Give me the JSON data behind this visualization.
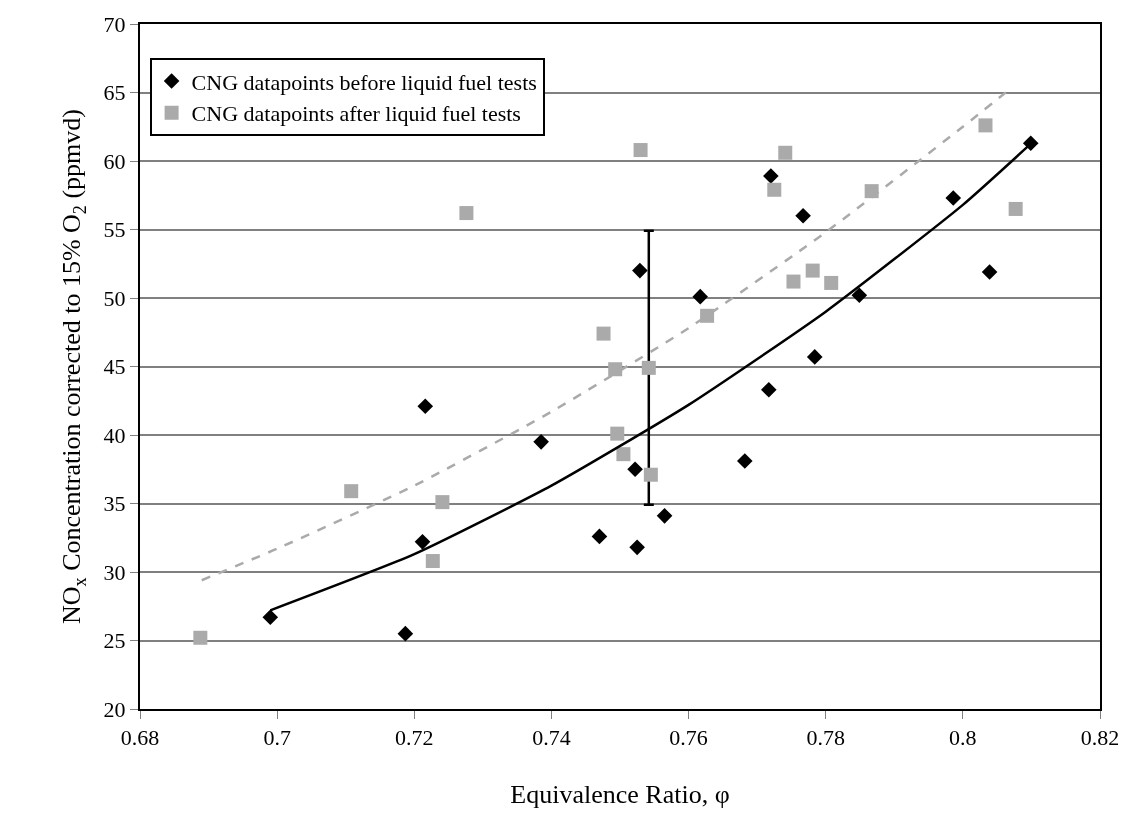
{
  "chart_data": {
    "type": "scatter",
    "xlabel": "Equivalence Ratio, φ",
    "ylabel": "NO$_{x}$ Concentration corrected to 15% O$_{2}$ (ppmvd)",
    "xlim": [
      0.68,
      0.82
    ],
    "xticks": [
      0.68,
      0.7,
      0.72,
      0.74,
      0.76,
      0.78,
      0.8,
      0.82
    ],
    "ylim": [
      20,
      70
    ],
    "yticks": [
      20,
      25,
      30,
      35,
      40,
      45,
      50,
      55,
      60,
      65,
      70
    ],
    "grid": "y",
    "legend": "top left",
    "series": [
      {
        "name": "CNG datapoints before liquid fuel tests",
        "marker": "diamond",
        "color": "#000000",
        "x": [
          0.699,
          0.7187,
          0.7212,
          0.7216,
          0.7385,
          0.747,
          0.7522,
          0.7525,
          0.7529,
          0.7565,
          0.7617,
          0.7682,
          0.7717,
          0.772,
          0.7767,
          0.7784,
          0.7849,
          0.7986,
          0.8039,
          0.8099
        ],
        "values": [
          26.7,
          25.5,
          32.2,
          42.1,
          39.5,
          32.6,
          37.5,
          31.8,
          52.0,
          34.1,
          50.1,
          38.1,
          43.3,
          58.9,
          56.0,
          45.7,
          50.2,
          57.3,
          51.9,
          61.3
        ]
      },
      {
        "name": "CNG datapoints after liquid fuel tests",
        "marker": "square",
        "color": "#aaaaaa",
        "x": [
          0.6888,
          0.7108,
          0.7227,
          0.7241,
          0.7276,
          0.7476,
          0.7493,
          0.7496,
          0.7505,
          0.753,
          0.7542,
          0.7545,
          0.7627,
          0.7725,
          0.7741,
          0.7753,
          0.7781,
          0.7808,
          0.7867,
          0.8033,
          0.8077
        ],
        "values": [
          25.2,
          35.9,
          30.8,
          35.1,
          56.2,
          47.4,
          44.8,
          40.1,
          38.6,
          60.8,
          44.9,
          37.1,
          48.7,
          57.9,
          60.6,
          51.2,
          52.0,
          51.1,
          57.8,
          62.6,
          56.5
        ],
        "errors": [
          null,
          null,
          null,
          null,
          null,
          null,
          null,
          null,
          null,
          null,
          10,
          null,
          null,
          null,
          null,
          null,
          null,
          null,
          null,
          null,
          null
        ]
      },
      {
        "type": "line",
        "line_style": "solid",
        "marker": "none",
        "color": "#000000",
        "x": [
          0.699,
          0.72,
          0.74,
          0.76,
          0.78,
          0.8,
          0.81
        ],
        "values": [
          27.2,
          31.3,
          36.3,
          42.2,
          49.0,
          56.8,
          61.3
        ]
      },
      {
        "type": "line",
        "line_style": "dashed",
        "marker": "none",
        "color": "#aaaaaa",
        "x": [
          0.689,
          0.7,
          0.72,
          0.74,
          0.76,
          0.78,
          0.8,
          0.807
        ],
        "values": [
          29.4,
          31.7,
          36.3,
          41.7,
          47.8,
          54.8,
          62.5,
          65.3
        ]
      }
    ]
  }
}
